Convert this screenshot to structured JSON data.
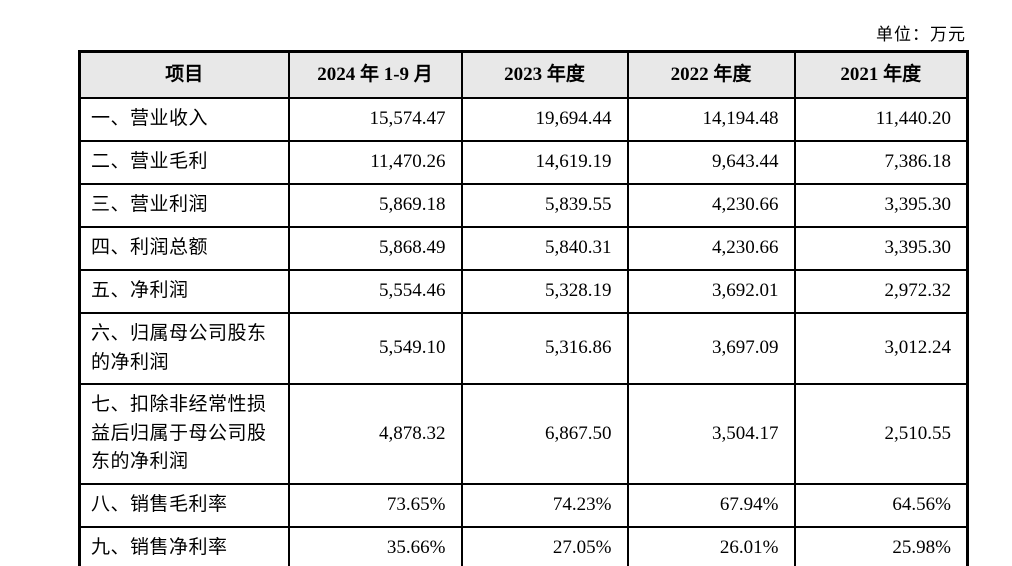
{
  "unit_label": "单位：万元",
  "colors": {
    "header_bg": "#e8e8e8",
    "border": "#000000",
    "text": "#000000",
    "page_bg": "#ffffff"
  },
  "table": {
    "columns": [
      "项目",
      "2024 年 1-9 月",
      "2023 年度",
      "2022 年度",
      "2021 年度"
    ],
    "rows": [
      {
        "label": "一、营业收入",
        "values": [
          "15,574.47",
          "19,694.44",
          "14,194.48",
          "11,440.20"
        ]
      },
      {
        "label": "二、营业毛利",
        "values": [
          "11,470.26",
          "14,619.19",
          "9,643.44",
          "7,386.18"
        ]
      },
      {
        "label": "三、营业利润",
        "values": [
          "5,869.18",
          "5,839.55",
          "4,230.66",
          "3,395.30"
        ]
      },
      {
        "label": "四、利润总额",
        "values": [
          "5,868.49",
          "5,840.31",
          "4,230.66",
          "3,395.30"
        ]
      },
      {
        "label": "五、净利润",
        "values": [
          "5,554.46",
          "5,328.19",
          "3,692.01",
          "2,972.32"
        ]
      },
      {
        "label": "六、归属母公司股东的净利润",
        "values": [
          "5,549.10",
          "5,316.86",
          "3,697.09",
          "3,012.24"
        ]
      },
      {
        "label": "七、扣除非经常性损益后归属于母公司股东的净利润",
        "values": [
          "4,878.32",
          "6,867.50",
          "3,504.17",
          "2,510.55"
        ]
      },
      {
        "label": "八、销售毛利率",
        "values": [
          "73.65%",
          "74.23%",
          "67.94%",
          "64.56%"
        ]
      },
      {
        "label": "九、销售净利率",
        "values": [
          "35.66%",
          "27.05%",
          "26.01%",
          "25.98%"
        ]
      }
    ]
  }
}
